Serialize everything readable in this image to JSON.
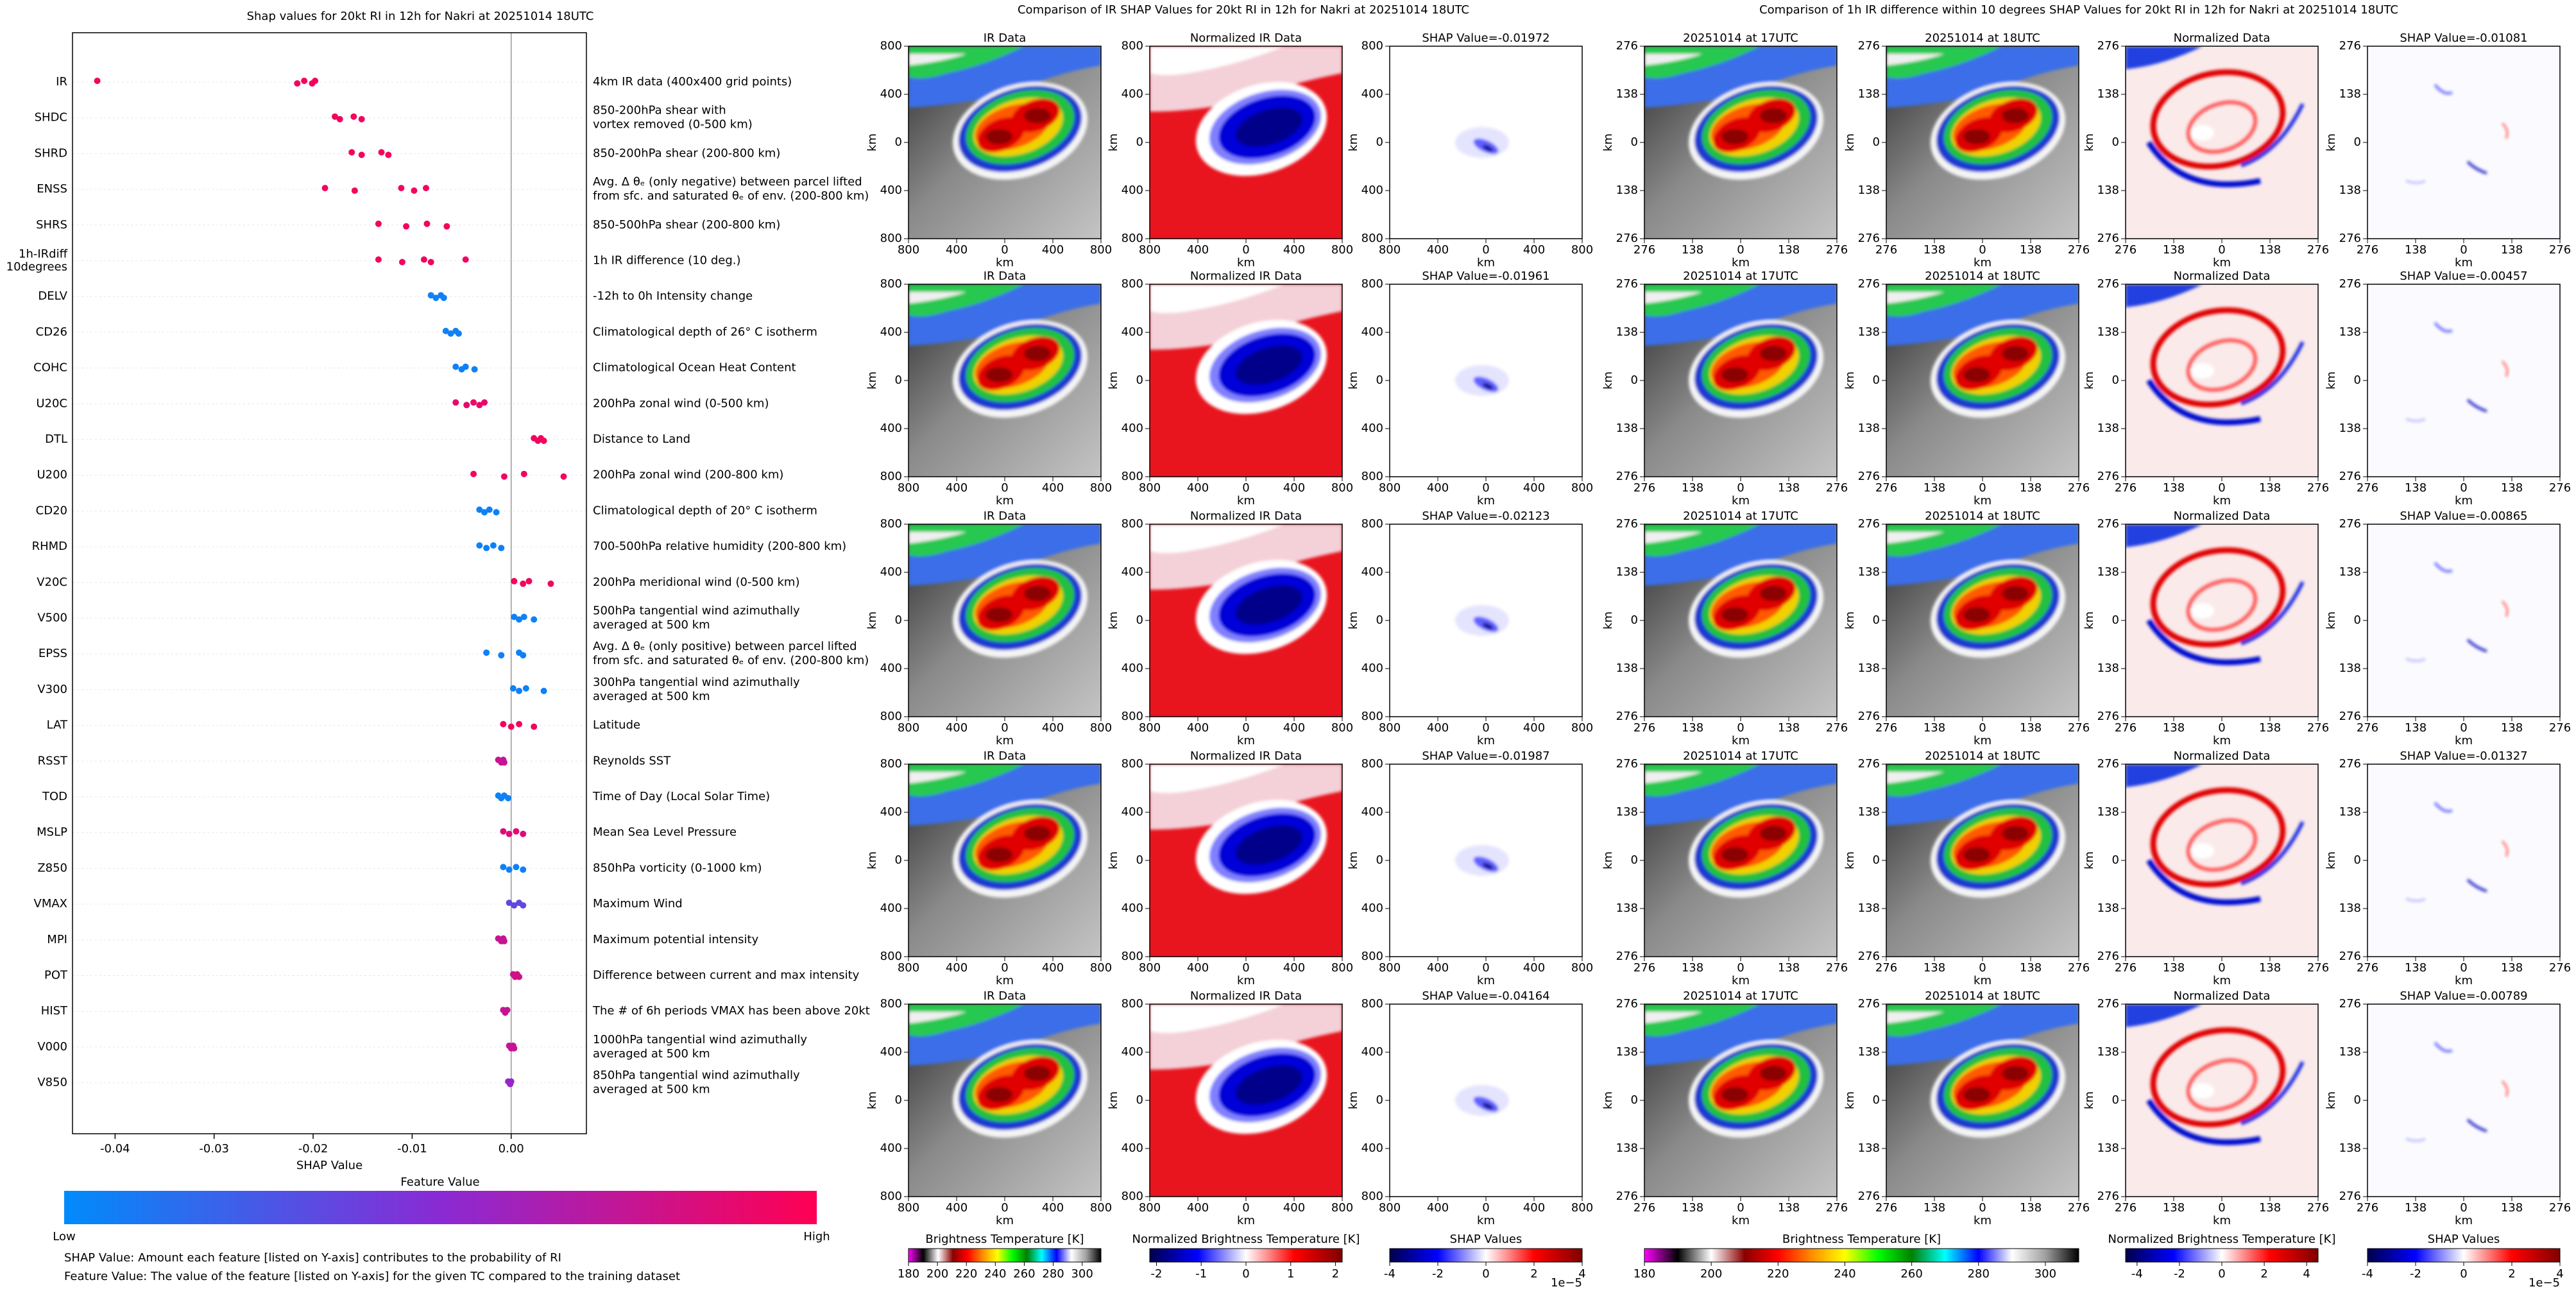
{
  "chart_data": [
    {
      "type": "beeswarm",
      "title": "Shap values for 20kt RI in 12h for Nakri at 20251014 18UTC",
      "xlabel": "SHAP Value",
      "categories": [
        "IR",
        "SHDC",
        "SHRD",
        "ENSS",
        "SHRS",
        [
          "1h-IRdiff",
          "10degrees"
        ],
        "DELV",
        "CD26",
        "COHC",
        "U20C",
        "DTL",
        "U200",
        "CD20",
        "RHMD",
        "V20C",
        "V500",
        "EPSS",
        "V300",
        "LAT",
        "RSST",
        "TOD",
        "MSLP",
        "Z850",
        "VMAX",
        "MPI",
        "POT",
        "HIST",
        "V000",
        "V850"
      ],
      "descriptions": [
        [
          "4km IR data (400x400 grid points)"
        ],
        [
          "850-200hPa shear with",
          "vortex removed (0-500 km)"
        ],
        [
          "850-200hPa shear (200-800 km)"
        ],
        [
          "Avg. Δ θₑ (only negative) between parcel lifted",
          "from sfc. and saturated θₑ of env. (200-800 km)"
        ],
        [
          "850-500hPa shear (200-800 km)"
        ],
        [
          "1h IR difference (10 deg.)"
        ],
        [
          "-12h to 0h Intensity change"
        ],
        [
          "Climatological depth of 26° C isotherm"
        ],
        [
          "Climatological Ocean Heat Content"
        ],
        [
          "200hPa zonal wind (0-500 km)"
        ],
        [
          "Distance to Land"
        ],
        [
          "200hPa zonal wind (200-800 km)"
        ],
        [
          "Climatological depth of 20° C isotherm"
        ],
        [
          "700-500hPa relative humidity (200-800 km)"
        ],
        [
          "200hPa meridional wind (0-500 km)"
        ],
        [
          "500hPa tangential wind azimuthally",
          "averaged at 500 km"
        ],
        [
          "Avg. Δ θₑ (only positive) between parcel lifted",
          "from sfc. and saturated θₑ of env. (200-800 km)"
        ],
        [
          "300hPa tangential wind azimuthally",
          "averaged at 500 km"
        ],
        [
          "Latitude"
        ],
        [
          "Reynolds SST"
        ],
        [
          "Time of Day (Local Solar Time)"
        ],
        [
          "Mean Sea Level Pressure"
        ],
        [
          "850hPa vorticity (0-1000 km)"
        ],
        [
          "Maximum Wind"
        ],
        [
          "Maximum potential intensity"
        ],
        [
          "Difference between current and max intensity"
        ],
        [
          "The # of 6h periods VMAX has been above 20kt"
        ],
        [
          "1000hPa tangential wind azimuthally",
          "averaged at 500 km"
        ],
        [
          "850hPa tangential wind azimuthally",
          "averaged at 500 km"
        ]
      ],
      "shap_values": [
        [
          -0.0418,
          -0.0216,
          -0.0209,
          -0.0201,
          -0.0198
        ],
        [
          -0.0178,
          -0.0173,
          -0.0159,
          -0.0151
        ],
        [
          -0.0161,
          -0.0151,
          -0.0131,
          -0.0124
        ],
        [
          -0.0188,
          -0.0158,
          -0.0111,
          -0.0098,
          -0.0086
        ],
        [
          -0.0134,
          -0.0106,
          -0.0085,
          -0.0065
        ],
        [
          -0.0134,
          -0.011,
          -0.0088,
          -0.0081,
          -0.0046
        ],
        [
          -0.0081,
          -0.0076,
          -0.0071,
          -0.0068
        ],
        [
          -0.0066,
          -0.0061,
          -0.0056,
          -0.0053
        ],
        [
          -0.0056,
          -0.005,
          -0.0046,
          -0.0037
        ],
        [
          -0.0056,
          -0.0045,
          -0.0038,
          -0.0032,
          -0.0027
        ],
        [
          0.0023,
          0.0027,
          0.003,
          0.0033
        ],
        [
          -0.0038,
          -0.0007,
          0.0013,
          0.0053
        ],
        [
          -0.0032,
          -0.0027,
          -0.0022,
          -0.0015
        ],
        [
          -0.0032,
          -0.0025,
          -0.0018,
          -0.001
        ],
        [
          0.0003,
          0.0012,
          0.0018,
          0.004
        ],
        [
          0.0003,
          0.0008,
          0.0013,
          0.0023
        ],
        [
          -0.0025,
          -0.001,
          0.0008,
          0.0012
        ],
        [
          0.0002,
          0.0008,
          0.0015,
          0.0033
        ],
        [
          -0.0008,
          0.0,
          0.0008,
          0.0023
        ],
        [
          -0.0013,
          -0.001,
          -0.0008,
          -0.0007
        ],
        [
          -0.0013,
          -0.001,
          -0.0007,
          -0.0003
        ],
        [
          -0.0008,
          -0.0002,
          0.0005,
          0.0012
        ],
        [
          -0.0008,
          -0.0002,
          0.0005,
          0.0012
        ],
        [
          -0.0002,
          0.0003,
          0.0008,
          0.0012
        ],
        [
          -0.0013,
          -0.001,
          -0.0008,
          -0.0007
        ],
        [
          0.0002,
          0.0004,
          0.0006,
          0.0008
        ],
        [
          -0.0008,
          -0.0006,
          -0.0004
        ],
        [
          -0.0002,
          0.0,
          0.0002,
          0.0003
        ],
        [
          -0.0003,
          -0.0001,
          0.0
        ]
      ],
      "feature_values": [
        [
          0.95,
          0.95,
          0.95,
          0.95,
          0.95
        ],
        [
          0.95,
          0.95,
          0.95,
          0.95
        ],
        [
          0.95,
          0.95,
          0.95,
          0.95
        ],
        [
          0.95,
          0.95,
          0.95,
          0.95,
          0.95
        ],
        [
          0.95,
          0.95,
          0.95,
          0.95
        ],
        [
          0.95,
          0.95,
          0.95,
          0.95,
          0.95
        ],
        [
          0.05,
          0.05,
          0.05,
          0.05
        ],
        [
          0.05,
          0.05,
          0.05,
          0.05
        ],
        [
          0.05,
          0.05,
          0.05,
          0.05
        ],
        [
          0.9,
          0.9,
          0.9,
          0.9,
          0.9
        ],
        [
          0.95,
          0.95,
          0.95,
          0.95
        ],
        [
          0.95,
          0.95,
          0.95,
          0.95
        ],
        [
          0.05,
          0.05,
          0.05,
          0.05
        ],
        [
          0.05,
          0.05,
          0.05,
          0.05
        ],
        [
          0.95,
          0.95,
          0.95,
          0.95
        ],
        [
          0.05,
          0.05,
          0.05,
          0.05
        ],
        [
          0.05,
          0.05,
          0.05,
          0.05
        ],
        [
          0.05,
          0.05,
          0.05,
          0.05
        ],
        [
          0.95,
          0.95,
          0.95,
          0.95
        ],
        [
          0.75,
          0.75,
          0.75,
          0.75
        ],
        [
          0.05,
          0.05,
          0.05,
          0.05
        ],
        [
          0.85,
          0.85,
          0.85,
          0.85
        ],
        [
          0.05,
          0.05,
          0.05,
          0.05
        ],
        [
          0.35,
          0.35,
          0.35,
          0.35
        ],
        [
          0.75,
          0.75,
          0.75,
          0.75
        ],
        [
          0.8,
          0.8,
          0.8,
          0.8
        ],
        [
          0.75,
          0.75,
          0.75
        ],
        [
          0.75,
          0.75,
          0.75,
          0.75
        ],
        [
          0.55,
          0.55,
          0.55
        ]
      ],
      "xlim": [
        -0.0443,
        0.0076
      ],
      "xticks": [
        -0.04,
        -0.03,
        -0.02,
        -0.01,
        {
          "value": 0,
          "label": "0.00"
        }
      ],
      "colorbar": {
        "label": "Feature Value",
        "low": "Low",
        "high": "High",
        "colors": [
          "#008bfb",
          "#8a2ad4",
          "#ff0052"
        ]
      },
      "notes": [
        "SHAP Value: Amount each feature [listed on Y-axis] contributes to the probability of RI",
        "Feature Value: The value of the feature [listed on Y-axis] for the given TC compared to the training dataset"
      ]
    },
    {
      "type": "image_grid",
      "title": "Comparison of IR SHAP Values for 20kt RI in 12h for Nakri at 20251014 18UTC",
      "xlim": [
        -800,
        800
      ],
      "ylim": [
        -800,
        800
      ],
      "xticks": [
        {
          "value": -800,
          "label": "800"
        },
        {
          "value": -400,
          "label": "400"
        },
        0,
        400,
        800
      ],
      "yticks": [
        {
          "value": -800,
          "label": "800"
        },
        {
          "value": -400,
          "label": "400"
        },
        0,
        400,
        800
      ],
      "xlabel": "km",
      "ylabel": "km",
      "panel_titles": [
        [
          "IR Data",
          "Normalized IR Data",
          "SHAP Value=-0.01972"
        ],
        [
          "IR Data",
          "Normalized IR Data",
          "SHAP Value=-0.01961"
        ],
        [
          "IR Data",
          "Normalized IR Data",
          "SHAP Value=-0.02123"
        ],
        [
          "IR Data",
          "Normalized IR Data",
          "SHAP Value=-0.01987"
        ],
        [
          "IR Data",
          "Normalized IR Data",
          "SHAP Value=-0.04164"
        ]
      ],
      "colorbars": [
        {
          "label": "Brightness Temperature [K]",
          "lim": [
            180,
            313
          ],
          "ticks": [
            180,
            200,
            220,
            240,
            260,
            280,
            300
          ],
          "colors": [
            "#ff00ff",
            "#000000",
            "#ffffff",
            "#8b0000",
            "#ff0000",
            "#ff8c00",
            "#ffff00",
            "#00ff00",
            "#008000",
            "#00ffff",
            "#0000ff",
            "#ffffff",
            "#a0a0a0",
            "#000000"
          ]
        },
        {
          "label": "Normalized Brightness Temperature [K]",
          "lim": [
            -2.15,
            2.15
          ],
          "ticks": [
            -2,
            -1,
            0,
            1,
            2
          ],
          "colors": [
            "#00004c",
            "#0000ff",
            "#ffffff",
            "#ff0000",
            "#800000"
          ]
        },
        {
          "label": "SHAP Values",
          "lim": [
            -4,
            4
          ],
          "ticks": [
            -4,
            -2,
            0,
            2,
            4
          ],
          "offset": "1e−5",
          "colors": [
            "#00004c",
            "#0000ff",
            "#ffffff",
            "#ff0000",
            "#800000"
          ]
        }
      ]
    },
    {
      "type": "image_grid",
      "title": "Comparison of 1h IR difference within 10 degrees SHAP Values for 20kt RI in 12h for Nakri at 20251014 18UTC",
      "xlim": [
        -276,
        276
      ],
      "ylim": [
        -276,
        276
      ],
      "xticks": [
        {
          "value": -276,
          "label": "276"
        },
        {
          "value": -138,
          "label": "138"
        },
        0,
        138,
        276
      ],
      "yticks": [
        {
          "value": -276,
          "label": "276"
        },
        {
          "value": -138,
          "label": "138"
        },
        0,
        138,
        276
      ],
      "xlabel": "km",
      "ylabel": "km",
      "panel_titles": [
        [
          "20251014 at 17UTC",
          "20251014 at 18UTC",
          "Normalized Data",
          "SHAP Value=-0.01081"
        ],
        [
          "20251014 at 17UTC",
          "20251014 at 18UTC",
          "Normalized Data",
          "SHAP Value=-0.00457"
        ],
        [
          "20251014 at 17UTC",
          "20251014 at 18UTC",
          "Normalized Data",
          "SHAP Value=-0.00865"
        ],
        [
          "20251014 at 17UTC",
          "20251014 at 18UTC",
          "Normalized Data",
          "SHAP Value=-0.01327"
        ],
        [
          "20251014 at 17UTC",
          "20251014 at 18UTC",
          "Normalized Data",
          "SHAP Value=-0.00789"
        ]
      ],
      "colorbars": [
        {
          "label": "Brightness Temperature [K]",
          "lim": [
            180,
            310
          ],
          "ticks": [
            180,
            200,
            220,
            240,
            260,
            280,
            300
          ],
          "colors": [
            "#ff00ff",
            "#000000",
            "#ffffff",
            "#8b0000",
            "#ff0000",
            "#ff8c00",
            "#ffff00",
            "#00ff00",
            "#008000",
            "#00ffff",
            "#0000ff",
            "#ffffff",
            "#a0a0a0",
            "#000000"
          ]
        },
        {
          "label": "Normalized Brightness Temperature [K]",
          "lim": [
            -4.54,
            4.54
          ],
          "ticks": [
            -4,
            -2,
            0,
            2,
            4
          ],
          "colors": [
            "#00004c",
            "#0000ff",
            "#ffffff",
            "#ff0000",
            "#800000"
          ]
        },
        {
          "label": "SHAP Values",
          "lim": [
            -4,
            4
          ],
          "ticks": [
            -4,
            -2,
            0,
            2,
            4
          ],
          "offset": "1e−5",
          "colors": [
            "#00004c",
            "#0000ff",
            "#ffffff",
            "#ff0000",
            "#800000"
          ]
        }
      ]
    }
  ]
}
